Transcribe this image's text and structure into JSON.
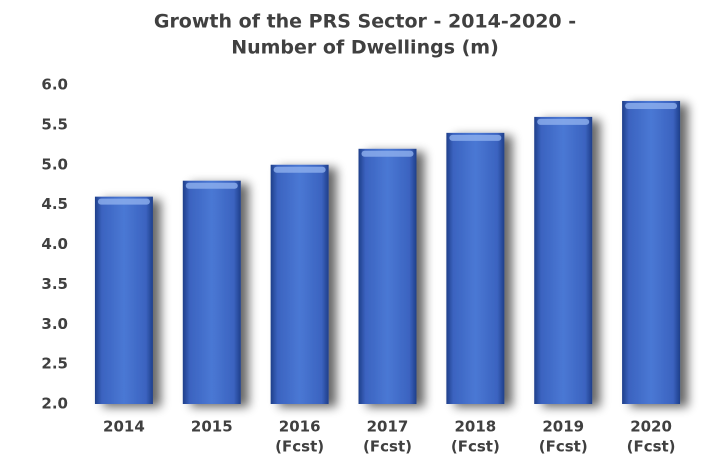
{
  "chart_data": {
    "type": "bar",
    "title": [
      "Growth of the PRS Sector - 2014-2020 -",
      "Number of Dwellings (m)"
    ],
    "categories": [
      [
        "2014"
      ],
      [
        "2015"
      ],
      [
        "2016",
        "(Fcst)"
      ],
      [
        "2017",
        "(Fcst)"
      ],
      [
        "2018",
        "(Fcst)"
      ],
      [
        "2019",
        "(Fcst)"
      ],
      [
        "2020",
        "(Fcst)"
      ]
    ],
    "values": [
      4.6,
      4.8,
      5.0,
      5.2,
      5.4,
      5.6,
      5.8
    ],
    "color": "#4472c4",
    "ylim": [
      2,
      6
    ],
    "yticks": [
      {
        "value": 2,
        "label": "2.0"
      },
      {
        "value": 2.5,
        "label": "2.5"
      },
      {
        "value": 3,
        "label": "3.0"
      },
      {
        "value": 3.5,
        "label": "3.5"
      },
      {
        "value": 4,
        "label": "4.0"
      },
      {
        "value": 4.5,
        "label": "4.5"
      },
      {
        "value": 5,
        "label": "5.0"
      },
      {
        "value": 5.5,
        "label": "5.5"
      },
      {
        "value": 6,
        "label": "6.0"
      }
    ],
    "grid": false
  }
}
